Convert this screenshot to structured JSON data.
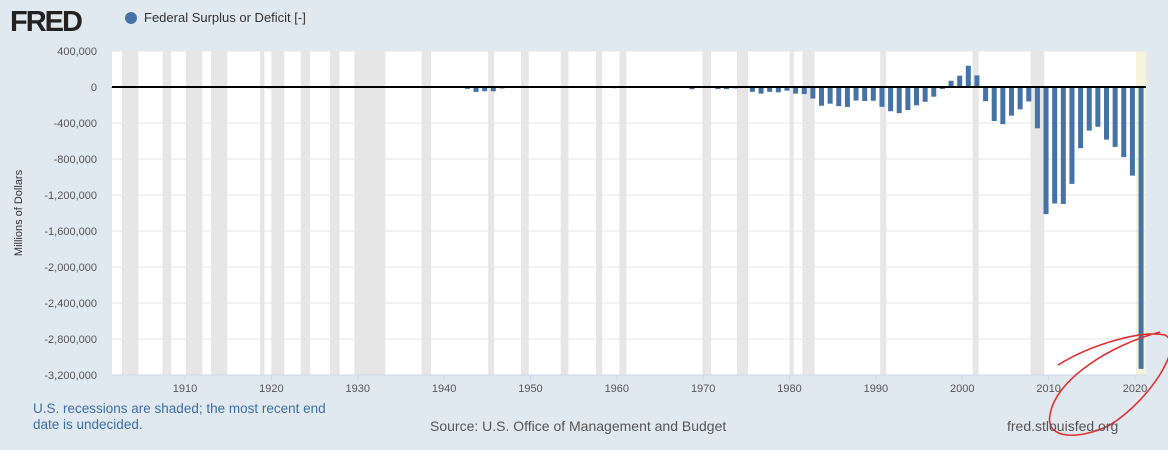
{
  "header": {
    "logo": "FRED",
    "legend_label": "Federal Surplus or Deficit [-]"
  },
  "footer": {
    "note": "U.S. recessions are shaded; the most recent end date is undecided.",
    "source": "Source: U.S. Office of Management and Budget",
    "site": "fred.stlouisfed.org"
  },
  "colors": {
    "bar": "#4572a7",
    "recession": "#e6e6e6",
    "recent_recession": "#f5f3dc",
    "annotation": "#e03030"
  },
  "chart_data": {
    "type": "bar",
    "title": "Federal Surplus or Deficit [-]",
    "xlabel": "",
    "ylabel": "Millions of Dollars",
    "xlim": [
      1901.6,
      2021.3
    ],
    "ylim": [
      -3200000,
      400000
    ],
    "yticks": [
      400000,
      0,
      -400000,
      -800000,
      -1200000,
      -1600000,
      -2000000,
      -2400000,
      -2800000,
      -3200000
    ],
    "ytick_labels": [
      "400,000",
      "0",
      "-400,000",
      "-800,000",
      "-1,200,000",
      "-1,600,000",
      "-2,000,000",
      "-2,400,000",
      "-2,800,000",
      "-3,200,000"
    ],
    "xticks": [
      1910,
      1920,
      1930,
      1940,
      1950,
      1960,
      1970,
      1980,
      1990,
      2000,
      2010,
      2020
    ],
    "grid": true,
    "start_year": 1901,
    "values": [
      63,
      77,
      45,
      -43,
      -23,
      25,
      87,
      -57,
      -89,
      -18,
      11,
      3,
      0,
      -1,
      -63,
      48,
      -853,
      -9032,
      -13363,
      291,
      509,
      736,
      713,
      963,
      717,
      865,
      1155,
      939,
      734,
      738,
      -462,
      -2735,
      -2602,
      -3630,
      -2791,
      -4425,
      -2777,
      -1177,
      -3862,
      -2920,
      -4941,
      -20503,
      -54554,
      -47557,
      -47553,
      -15936,
      4018,
      11796,
      580,
      -3119,
      6102,
      -1519,
      -6493,
      -1154,
      -2993,
      3947,
      3412,
      -2769,
      -12849,
      301,
      -3335,
      -7146,
      -4756,
      -5915,
      -1411,
      -3698,
      -8643,
      -25161,
      3242,
      -2842,
      -23033,
      -23373,
      -14908,
      -6135,
      -53242,
      -73732,
      -53659,
      -59185,
      -40726,
      -73830,
      -78968,
      -127977,
      -207802,
      -185367,
      -212308,
      -221227,
      -149730,
      -155178,
      -152639,
      -221036,
      -269238,
      -290321,
      -255051,
      -203186,
      -163952,
      -107431,
      -21884,
      69270,
      125610,
      236241,
      128236,
      -157758,
      -377585,
      -412727,
      -318346,
      -248181,
      -160701,
      -458553,
      -1412688,
      -1294373,
      -1299593,
      -1076573,
      -679775,
      -484602,
      -441960,
      -584651,
      -665446,
      -779137,
      -984388,
      -3131917
    ],
    "recessions": [
      [
        1902.7,
        1904.6
      ],
      [
        1907.4,
        1908.4
      ],
      [
        1910.1,
        1912.0
      ],
      [
        1913.0,
        1914.9
      ],
      [
        1918.7,
        1919.2
      ],
      [
        1920.0,
        1921.5
      ],
      [
        1923.4,
        1924.5
      ],
      [
        1926.8,
        1927.9
      ],
      [
        1929.6,
        1933.2
      ],
      [
        1937.4,
        1938.5
      ],
      [
        1945.1,
        1945.8
      ],
      [
        1948.9,
        1949.8
      ],
      [
        1953.5,
        1954.4
      ],
      [
        1957.6,
        1958.3
      ],
      [
        1960.3,
        1961.1
      ],
      [
        1969.9,
        1970.9
      ],
      [
        1973.9,
        1975.2
      ],
      [
        1980.0,
        1980.5
      ],
      [
        1981.5,
        1982.9
      ],
      [
        1990.5,
        1991.2
      ],
      [
        2001.2,
        2001.9
      ],
      [
        2007.9,
        2009.5
      ]
    ],
    "recent_recession": [
      2020.1,
      2021.3
    ]
  }
}
